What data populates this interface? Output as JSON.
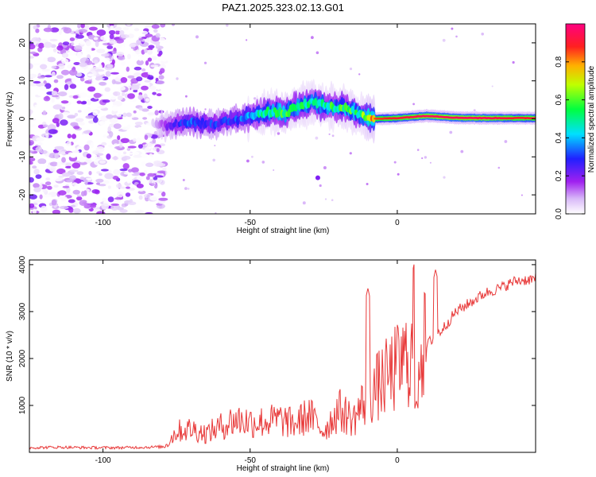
{
  "title": "PAZ1.2025.323.02.13.G01",
  "colors": {
    "snr_line": "#e83a3a",
    "axis": "#000000",
    "background": "#ffffff"
  },
  "chart_data": [
    {
      "type": "heatmap",
      "title": "PAZ1.2025.323.02.13.G01",
      "xlabel": "Height of straight line (km)",
      "ylabel": "Frequency (Hz)",
      "xlim": [
        -125,
        47
      ],
      "ylim": [
        -25,
        25
      ],
      "x_ticks": [
        -100,
        -50,
        0
      ],
      "x_tick_labels": [
        "-100",
        "-50",
        "0"
      ],
      "y_ticks": [
        -20,
        -10,
        0,
        10,
        20
      ],
      "y_tick_labels": [
        "-20",
        "-10",
        "0",
        "10",
        "20"
      ],
      "noise_region_x": [
        -125,
        -79
      ],
      "ridge": {
        "x": [
          -83,
          -78,
          -73,
          -68,
          -63,
          -58,
          -53,
          -48,
          -43,
          -38,
          -33,
          -28,
          -23,
          -18,
          -13,
          -8,
          0,
          10,
          20,
          30,
          40,
          47
        ],
        "frequency": [
          -1.5,
          -1.8,
          -1.2,
          -1.0,
          -1.5,
          -0.5,
          0.0,
          1.0,
          2.0,
          1.5,
          3.5,
          4.5,
          3.0,
          3.0,
          1.0,
          0.0,
          0.2,
          0.8,
          0.3,
          0.2,
          0.2,
          0.2
        ],
        "amplitude": [
          0.05,
          0.2,
          0.3,
          0.35,
          0.3,
          0.3,
          0.35,
          0.45,
          0.55,
          0.6,
          0.55,
          0.5,
          0.55,
          0.6,
          0.55,
          0.85,
          0.9,
          0.95,
          0.95,
          0.95,
          0.9,
          0.9
        ]
      },
      "colorbar": {
        "label": "Normalized spectral amplitude",
        "ticks": [
          0.0,
          0.2,
          0.4,
          0.6,
          0.8
        ],
        "tick_labels": [
          "0.0",
          "0.2",
          "0.4",
          "0.6",
          "0.8"
        ],
        "range": [
          0,
          1
        ],
        "colormap": [
          "#ffffff",
          "#a020f0",
          "#0000ff",
          "#00ffff",
          "#00ff00",
          "#ffff00",
          "#ff8000",
          "#ff0000",
          "#ff0080"
        ]
      }
    },
    {
      "type": "line",
      "title": "",
      "xlabel": "Height of straight line (km)",
      "ylabel": "SNR (10 * v/v)",
      "xlim": [
        -125,
        47
      ],
      "ylim": [
        0,
        4100
      ],
      "x_ticks": [
        -100,
        -50,
        0
      ],
      "x_tick_labels": [
        "-100",
        "-50",
        "0"
      ],
      "y_ticks": [
        1000,
        2000,
        3000,
        4000
      ],
      "y_tick_labels": [
        "1000",
        "2000",
        "3000",
        "4000"
      ],
      "series": [
        {
          "name": "SNR",
          "x": [
            -125,
            -115,
            -105,
            -95,
            -85,
            -79,
            -75,
            -70,
            -65,
            -60,
            -55,
            -50,
            -45,
            -40,
            -35,
            -30,
            -25,
            -20,
            -15,
            -10,
            -5,
            0,
            5,
            10,
            15,
            20,
            25,
            30,
            35,
            40,
            47
          ],
          "y": [
            100,
            110,
            100,
            100,
            110,
            120,
            450,
            500,
            400,
            550,
            700,
            650,
            650,
            700,
            600,
            800,
            450,
            900,
            700,
            1200,
            1500,
            1800,
            2100,
            2300,
            2600,
            3000,
            3200,
            3400,
            3500,
            3650,
            3700
          ]
        }
      ],
      "spikes": [
        {
          "x": -10,
          "y": 3500
        },
        {
          "x": 6,
          "y": 4100
        },
        {
          "x": 13,
          "y": 3900
        },
        {
          "x": 6.5,
          "y": 1100
        }
      ]
    }
  ]
}
